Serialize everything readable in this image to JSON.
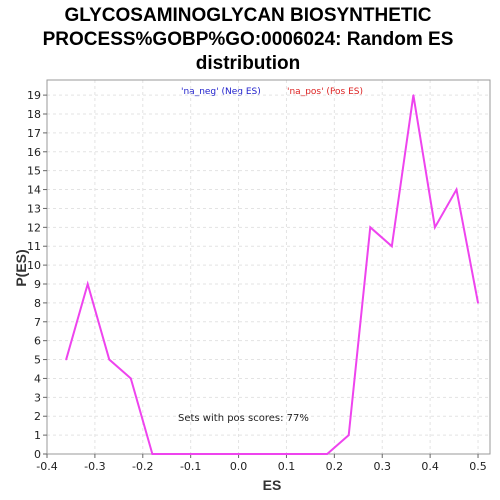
{
  "chart_data": {
    "type": "line",
    "title_lines": [
      "GLYCOSAMINOGLYCAN BIOSYNTHETIC",
      "PROCESS%GOBP%GO:0006024: Random ES",
      "distribution"
    ],
    "xlabel": "ES",
    "ylabel": "P(ES)",
    "xlim": [
      -0.4,
      0.525
    ],
    "ylim": [
      0,
      19.8
    ],
    "x_ticks": [
      -0.4,
      -0.3,
      -0.2,
      -0.1,
      0.0,
      0.1,
      0.2,
      0.3,
      0.4,
      0.5
    ],
    "x_tick_labels": [
      "-0.4",
      "-0.3",
      "-0.2",
      "-0.1",
      "0.0",
      "0.1",
      "0.2",
      "0.3",
      "0.4",
      "0.5"
    ],
    "y_ticks": [
      0,
      1,
      2,
      3,
      4,
      5,
      6,
      7,
      8,
      9,
      10,
      11,
      12,
      13,
      14,
      15,
      16,
      17,
      18,
      19
    ],
    "y_tick_labels": [
      "0",
      "1",
      "2",
      "3",
      "4",
      "5",
      "6",
      "7",
      "8",
      "9",
      "10",
      "11",
      "12",
      "13",
      "14",
      "15",
      "16",
      "17",
      "18",
      "19"
    ],
    "grid": true,
    "legend": [
      {
        "label": "'na_neg' (Neg ES)",
        "color": "#2222cc"
      },
      {
        "label": "'na_pos' (Pos ES)",
        "color": "#dd2222"
      }
    ],
    "annotation": "Sets with pos scores: 77%",
    "series": [
      {
        "color": "#ee44ee",
        "x": [
          -0.36,
          -0.315,
          -0.27,
          -0.225,
          -0.18,
          -0.135,
          -0.09,
          -0.045,
          0.0,
          0.045,
          0.09,
          0.135,
          0.185,
          0.23,
          0.275,
          0.32,
          0.365,
          0.41,
          0.455,
          0.5
        ],
        "y": [
          5,
          9,
          5,
          4,
          0,
          0,
          0,
          0,
          0,
          0,
          0,
          0,
          0,
          1,
          12,
          11,
          19,
          12,
          14,
          8
        ]
      }
    ]
  }
}
